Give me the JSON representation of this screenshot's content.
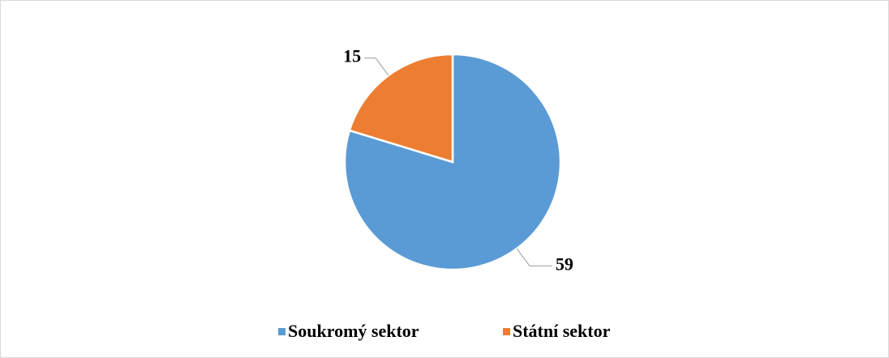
{
  "chart_data": {
    "type": "pie",
    "categories": [
      "Soukromý sektor",
      "Státní sektor"
    ],
    "values": [
      59,
      15
    ],
    "colors": [
      "#5b9bd5",
      "#ed7d31"
    ],
    "legend": "bottom"
  }
}
